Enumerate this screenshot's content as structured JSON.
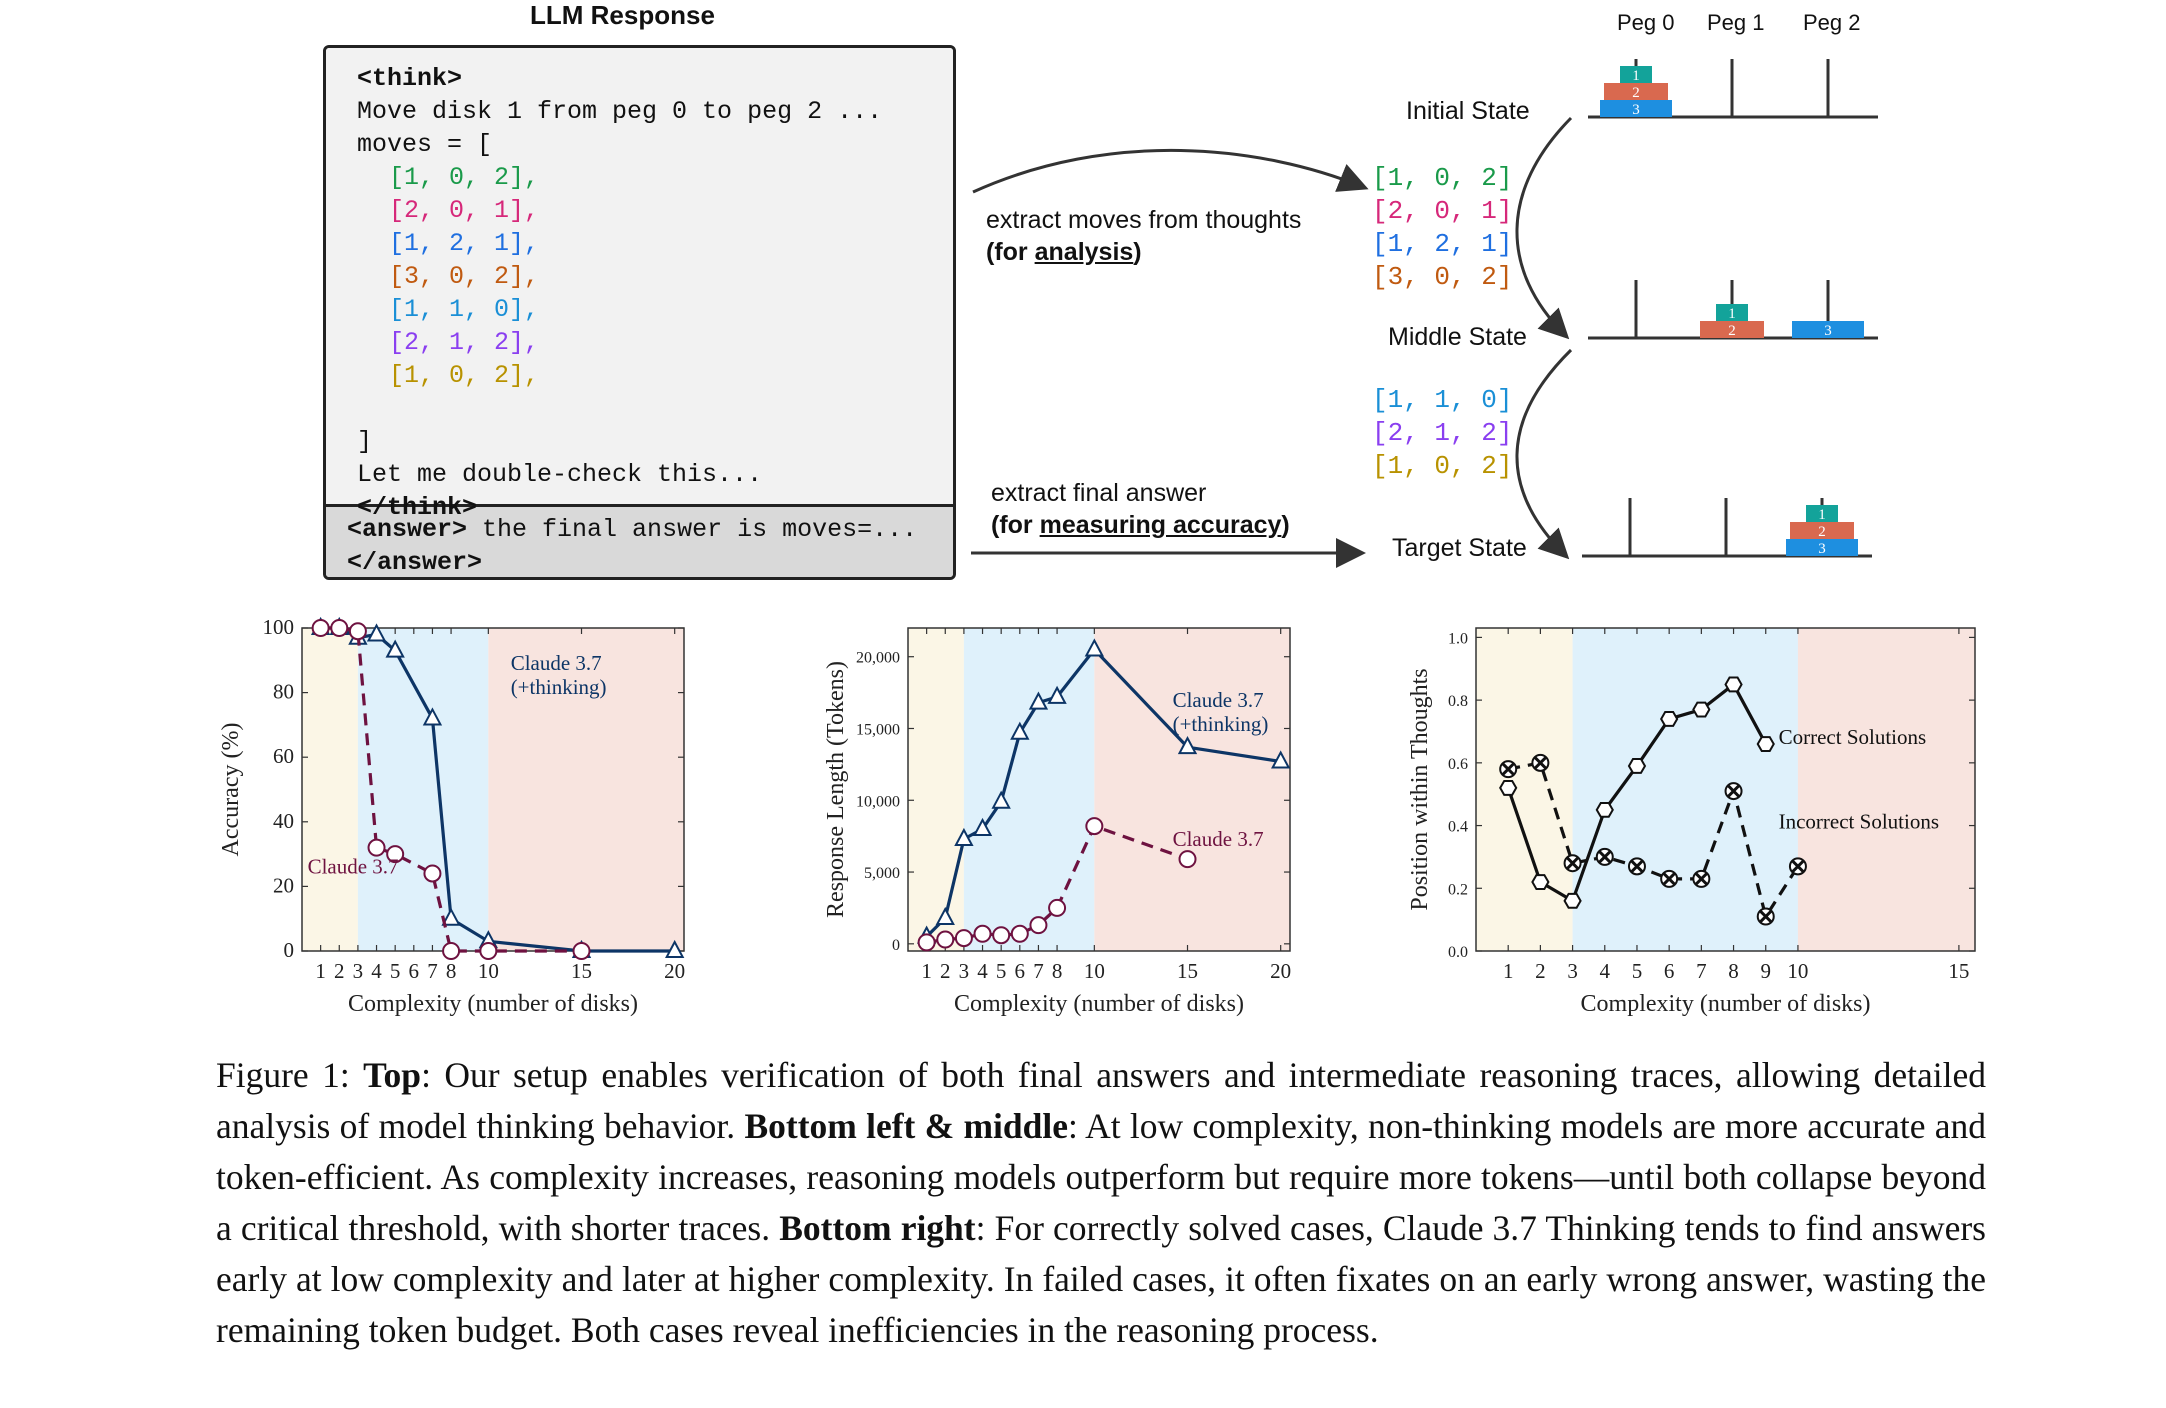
{
  "top": {
    "llm_response_title": "LLM Response",
    "think_open": "<think>",
    "think_line1": "Move disk 1 from peg 0 to peg 2 ...",
    "moves_open": "moves = [",
    "moves": [
      {
        "text": "[1, 0, 2],",
        "color": "#1a9a4a"
      },
      {
        "text": "[2, 0, 1],",
        "color": "#d6287a"
      },
      {
        "text": "[1, 2, 1],",
        "color": "#1f6fe0"
      },
      {
        "text": "[3, 0, 2],",
        "color": "#c05a10"
      },
      {
        "text": "[1, 1, 0],",
        "color": "#1a8fd6"
      },
      {
        "text": "[2, 1, 2],",
        "color": "#8a3ff0"
      },
      {
        "text": "[1, 0, 2],",
        "color": "#b89200"
      }
    ],
    "moves_close": "]",
    "double_check": "Let me double-check this...",
    "think_close": "</think>",
    "answer_open": "<answer>",
    "answer_text": " the final answer is moves=...",
    "answer_close": "</answer>",
    "extract_moves_line1": "extract moves  from thoughts",
    "extract_moves_line2_prefix": "(for ",
    "extract_moves_line2_u": "analysis",
    "extract_moves_line2_suffix": ")",
    "extract_final_line1": "extract final answer",
    "extract_final_line2_prefix": "(for ",
    "extract_final_line2_u": "measuring accuracy",
    "extract_final_line2_suffix": ")",
    "right_moves_top": [
      {
        "text": "[1, 0, 2]",
        "color": "#1a9a4a"
      },
      {
        "text": "[2, 0, 1]",
        "color": "#d6287a"
      },
      {
        "text": "[1, 2, 1]",
        "color": "#1f6fe0"
      },
      {
        "text": "[3, 0, 2]",
        "color": "#c05a10"
      }
    ],
    "right_moves_bottom": [
      {
        "text": "[1, 1, 0]",
        "color": "#1a8fd6"
      },
      {
        "text": "[2, 1, 2]",
        "color": "#8a3ff0"
      },
      {
        "text": "[1, 0, 2]",
        "color": "#b89200"
      }
    ],
    "pegs": [
      "Peg 0",
      "Peg 1",
      "Peg 2"
    ],
    "states": [
      "Initial State",
      "Middle State",
      "Target State"
    ],
    "disk_labels": [
      "1",
      "2",
      "3"
    ],
    "disk_colors": {
      "1": "#13a39a",
      "2": "#d9694f",
      "3": "#1e8fe0"
    }
  },
  "chart_data": [
    {
      "type": "line",
      "xlabel": "Complexity (number of disks)",
      "ylabel": "Accuracy (%)",
      "xlim": [
        0,
        20.5
      ],
      "ylim": [
        0,
        100
      ],
      "xticks": [
        1,
        2,
        3,
        4,
        5,
        6,
        7,
        8,
        10,
        15,
        20
      ],
      "yticks": [
        0,
        20,
        40,
        60,
        80,
        100
      ],
      "regions": [
        {
          "from": 0,
          "to": 3,
          "color": "#fbf6e6"
        },
        {
          "from": 3,
          "to": 10,
          "color": "#dff1fb"
        },
        {
          "from": 10,
          "to": 20.5,
          "color": "#f8e4df"
        }
      ],
      "series": [
        {
          "name": "Claude 3.7 (+thinking)",
          "marker": "triangle",
          "dash": false,
          "color": "#0d3566",
          "x": [
            1,
            2,
            3,
            4,
            5,
            7,
            8,
            10,
            15,
            20
          ],
          "y": [
            100,
            100,
            97,
            98,
            93,
            72,
            10,
            3,
            0,
            0
          ]
        },
        {
          "name": "Claude 3.7",
          "marker": "circle",
          "dash": true,
          "color": "#6e1240",
          "x": [
            1,
            2,
            3,
            4,
            5,
            7,
            8,
            10,
            15
          ],
          "y": [
            100,
            100,
            99,
            32,
            30,
            24,
            0,
            0,
            0
          ]
        }
      ],
      "annotations": [
        {
          "lines": [
            "Claude 3.7",
            "(+thinking)"
          ],
          "color": "#0d3566",
          "x": 11.2,
          "y": 87
        },
        {
          "lines": [
            "Claude 3.7"
          ],
          "color": "#6e1240",
          "x": 0.3,
          "y": 24
        }
      ]
    },
    {
      "type": "line",
      "xlabel": "Complexity (number of disks)",
      "ylabel": "Response Length (Tokens)",
      "xlim": [
        0,
        20.5
      ],
      "ylim": [
        -500,
        22000
      ],
      "xticks": [
        1,
        2,
        3,
        4,
        5,
        6,
        7,
        8,
        10,
        15,
        20
      ],
      "yticks": [
        0,
        5000,
        10000,
        15000,
        20000
      ],
      "ytick_labels": [
        "0",
        "5,000",
        "10,000",
        "15,000",
        "20,000"
      ],
      "regions": [
        {
          "from": 0,
          "to": 3,
          "color": "#fbf6e6"
        },
        {
          "from": 3,
          "to": 10,
          "color": "#dff1fb"
        },
        {
          "from": 10,
          "to": 20.5,
          "color": "#f8e4df"
        }
      ],
      "series": [
        {
          "name": "Claude 3.7 (+thinking)",
          "marker": "triangle",
          "dash": false,
          "color": "#0d3566",
          "x": [
            1,
            2,
            3,
            4,
            5,
            6,
            7,
            8,
            10,
            15,
            20
          ],
          "y": [
            500,
            1800,
            7300,
            8000,
            9900,
            14700,
            16800,
            17200,
            20500,
            13700,
            12700
          ]
        },
        {
          "name": "Claude 3.7",
          "marker": "circle",
          "dash": true,
          "color": "#6e1240",
          "x": [
            1,
            2,
            3,
            4,
            5,
            6,
            7,
            8,
            10,
            15
          ],
          "y": [
            100,
            300,
            400,
            700,
            600,
            700,
            1300,
            2500,
            8200,
            5900
          ]
        }
      ],
      "annotations": [
        {
          "lines": [
            "Claude 3.7",
            "(+thinking)"
          ],
          "color": "#0d3566",
          "x": 14.2,
          "y": 16500
        },
        {
          "lines": [
            "Claude 3.7"
          ],
          "color": "#6e1240",
          "x": 14.2,
          "y": 6800
        }
      ]
    },
    {
      "type": "line",
      "xlabel": "Complexity (number of disks)",
      "ylabel": "Position within Thoughts",
      "xlim": [
        0,
        15.5
      ],
      "ylim": [
        0,
        1.03
      ],
      "xticks": [
        1,
        2,
        3,
        4,
        5,
        6,
        7,
        8,
        9,
        10,
        15
      ],
      "yticks": [
        0.0,
        0.2,
        0.4,
        0.6,
        0.8,
        1.0
      ],
      "ytick_labels": [
        "0.0",
        "0.2",
        "0.4",
        "0.6",
        "0.8",
        "1.0"
      ],
      "regions": [
        {
          "from": 0,
          "to": 3,
          "color": "#fbf6e6"
        },
        {
          "from": 3,
          "to": 10,
          "color": "#dff1fb"
        },
        {
          "from": 10,
          "to": 15.5,
          "color": "#f8e4df"
        }
      ],
      "series": [
        {
          "name": "Correct Solutions",
          "marker": "hexagon",
          "dash": false,
          "color": "#111111",
          "x": [
            1,
            2,
            3,
            4,
            5,
            6,
            7,
            8,
            9
          ],
          "y": [
            0.52,
            0.22,
            0.16,
            0.45,
            0.59,
            0.74,
            0.77,
            0.85,
            0.66
          ]
        },
        {
          "name": "Incorrect Solutions",
          "marker": "xcircle",
          "dash": true,
          "color": "#111111",
          "x": [
            1,
            2,
            3,
            4,
            5,
            6,
            7,
            8,
            9,
            10
          ],
          "y": [
            0.58,
            0.6,
            0.28,
            0.3,
            0.27,
            0.23,
            0.23,
            0.51,
            0.11,
            0.27
          ]
        }
      ],
      "annotations": [
        {
          "lines": [
            "Correct Solutions"
          ],
          "color": "#111111",
          "x": 9.4,
          "y": 0.66
        },
        {
          "lines": [
            "Incorrect Solutions"
          ],
          "color": "#111111",
          "x": 9.4,
          "y": 0.39
        }
      ]
    }
  ],
  "caption": {
    "label": "Figure 1: ",
    "top_bold": "Top",
    "top_text": ": Our setup enables verification of both final answers and intermediate reasoning traces, allowing detailed analysis of model thinking behavior. ",
    "bl_bold": "Bottom left & middle",
    "bl_text": ": At low complexity, non-thinking models are more accurate and token-efficient. As complexity increases, reasoning models outperform but require more tokens—until both collapse beyond a critical threshold, with shorter traces. ",
    "br_bold": "Bottom right",
    "br_text": ": For correctly solved cases, Claude 3.7 Thinking tends to find answers early at low complexity and later at higher complexity. In failed cases, it often fixates on an early wrong answer, wasting the remaining token budget. Both cases reveal inefficiencies in the reasoning process."
  }
}
